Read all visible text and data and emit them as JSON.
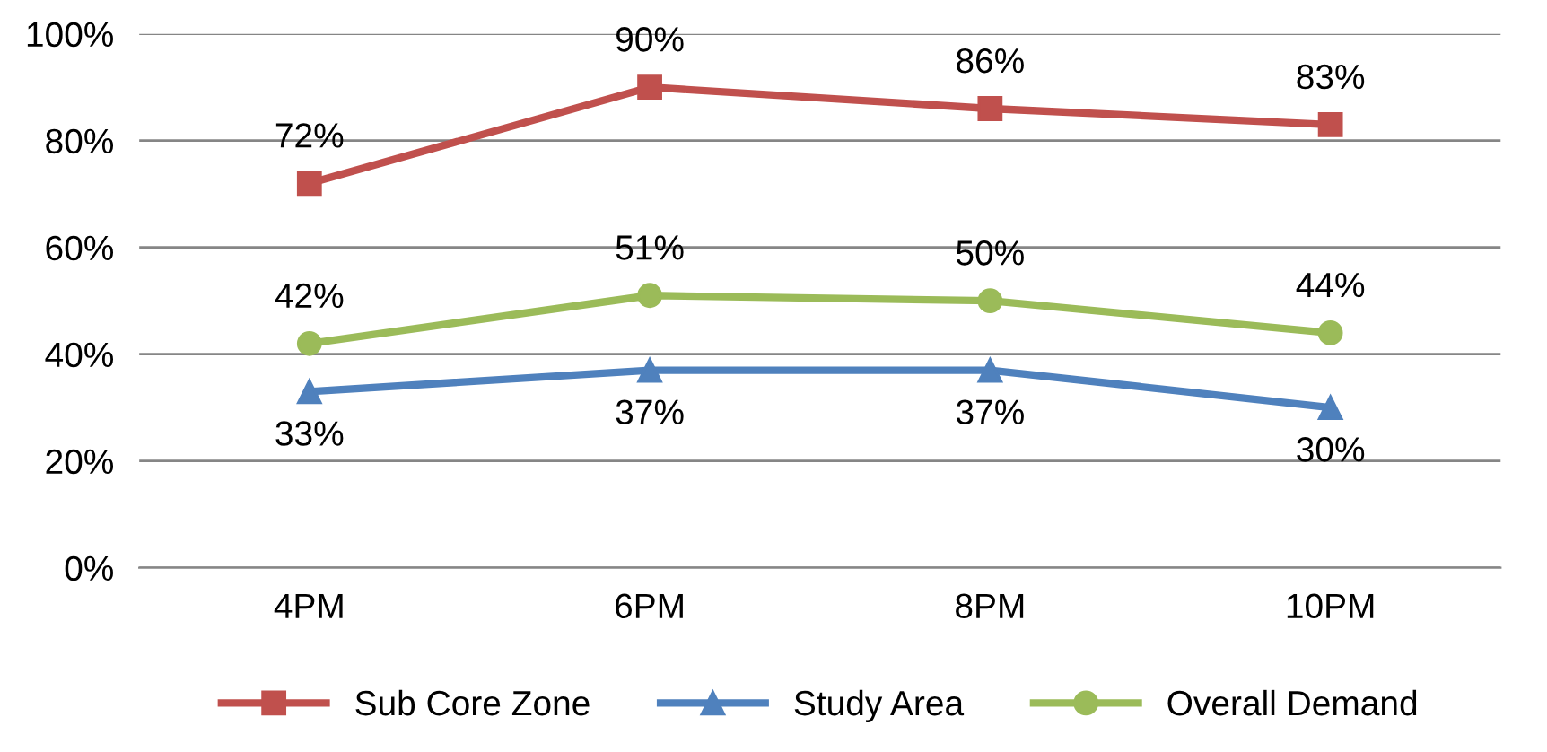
{
  "chart_data": {
    "type": "line",
    "categories": [
      "4PM",
      "6PM",
      "8PM",
      "10PM"
    ],
    "series": [
      {
        "name": "Sub Core Zone",
        "color": "#c0504d",
        "marker": "square",
        "values": [
          72,
          90,
          86,
          83
        ],
        "value_labels": [
          "72%",
          "90%",
          "86%",
          "83%"
        ]
      },
      {
        "name": "Study Area",
        "color": "#4f81bd",
        "marker": "triangle",
        "values": [
          33,
          37,
          37,
          30
        ],
        "value_labels": [
          "33%",
          "37%",
          "37%",
          "30%"
        ]
      },
      {
        "name": "Overall Demand",
        "color": "#9bbb59",
        "marker": "circle",
        "values": [
          42,
          51,
          50,
          44
        ],
        "value_labels": [
          "42%",
          "51%",
          "50%",
          "44%"
        ]
      }
    ],
    "ylim": [
      0,
      100
    ],
    "yticks": [
      {
        "value": 0,
        "label": "0%"
      },
      {
        "value": 20,
        "label": "20%"
      },
      {
        "value": 40,
        "label": "40%"
      },
      {
        "value": 60,
        "label": "60%"
      },
      {
        "value": 80,
        "label": "80%"
      },
      {
        "value": 100,
        "label": "100%"
      }
    ],
    "grid": "y",
    "legend": "bottom",
    "line_style": "solid"
  }
}
